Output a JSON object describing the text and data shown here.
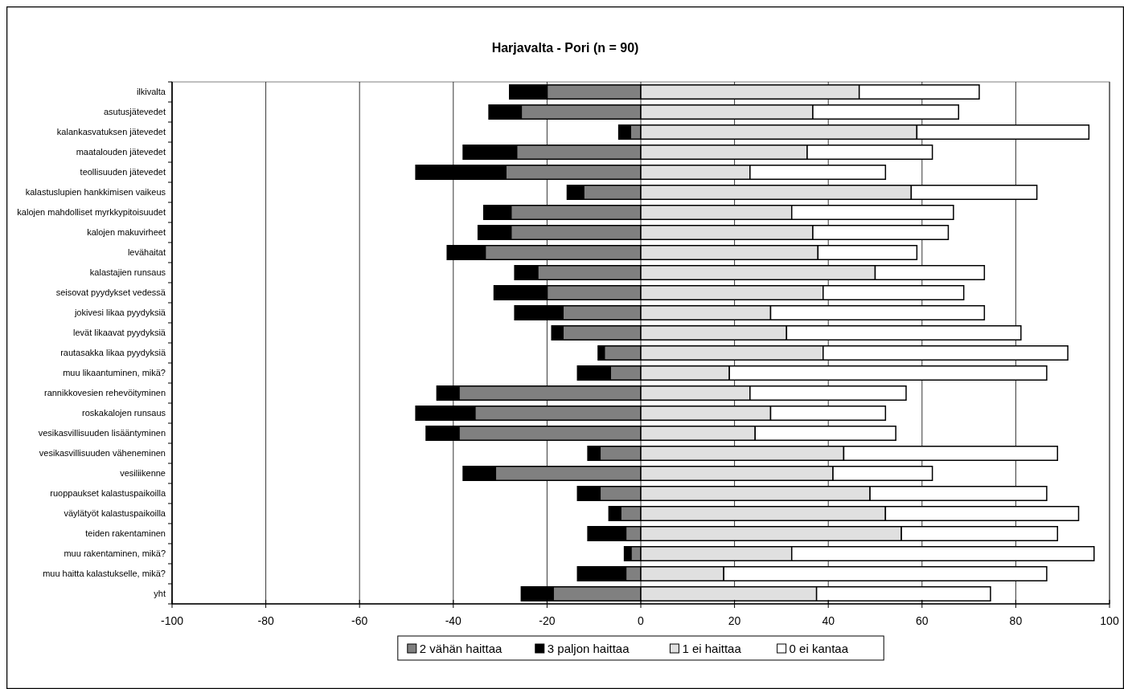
{
  "chart_data": {
    "type": "bar",
    "title": "Harjavalta - Pori (n = 90)",
    "orientation": "horizontal",
    "stacked": true,
    "categories": [
      "ilkivalta",
      "asutusjätevedet",
      "kalankasvatuksen jätevedet",
      "maatalouden jätevedet",
      "teollisuuden jätevedet",
      "kalastuslupien hankkimisen vaikeus",
      "kalojen mahdolliset myrkkypitoisuudet",
      "kalojen makuvirheet",
      "levähaitat",
      "kalastajien runsaus",
      "seisovat pyydykset vedessä",
      "jokivesi likaa pyydyksiä",
      "levät likaavat pyydyksiä",
      "rautasakka likaa pyydyksiä",
      "muu likaantuminen, mikä?",
      "rannikkovesien rehevöityminen",
      "roskakalojen runsaus",
      "vesikasvillisuuden lisääntyminen",
      "vesikasvillisuuden väheneminen",
      "vesiliikenne",
      "ruoppaukset kalastuspaikoilla",
      "väylätyöt kalastuspaikoilla",
      "teiden rakentaminen",
      "muu rakentaminen, mikä?",
      "muu haitta kalastukselle, mikä?",
      "yht"
    ],
    "series": [
      {
        "name": "2 vähän haittaa",
        "color": "#808080",
        "values": [
          -20,
          -25.5,
          -2.2,
          -26.5,
          -28.8,
          -12.2,
          -27.7,
          -27.7,
          -33.2,
          -22,
          -20,
          -16.6,
          -16.6,
          -7.8,
          -6.5,
          -38.8,
          -35.4,
          -38.8,
          -8.7,
          -31,
          -8.7,
          -4.3,
          -3.2,
          -2.1,
          -3.2,
          -18.7
        ]
      },
      {
        "name": "3 paljon haittaa",
        "color": "#000000",
        "values": [
          -8,
          -6.9,
          -2.5,
          -11.4,
          -19.2,
          -3.5,
          -5.8,
          -7,
          -8.1,
          -4.9,
          -11.3,
          -10.3,
          -2.4,
          -1.3,
          -7,
          -4.7,
          -12.6,
          -7,
          -2.6,
          -6.9,
          -4.8,
          -2.5,
          -8.1,
          -1.4,
          -10.3,
          -6.8
        ]
      },
      {
        "name": "1 ei haittaa",
        "color": "#e0e0e0",
        "values": [
          46.6,
          36.7,
          58.9,
          35.5,
          23.3,
          57.7,
          32.2,
          36.7,
          37.8,
          50,
          38.9,
          27.7,
          31.1,
          38.9,
          18.9,
          23.3,
          27.7,
          24.4,
          43.3,
          41,
          48.9,
          52.2,
          55.6,
          32.2,
          17.7,
          37.5
        ]
      },
      {
        "name": "0 ei kantaa",
        "color": "#ffffff",
        "values": [
          25.6,
          31.1,
          36.7,
          26.7,
          28.9,
          26.8,
          34.5,
          28.9,
          21.1,
          23.3,
          30,
          45.6,
          50,
          52.2,
          67.7,
          33.3,
          24.5,
          30,
          45.6,
          21.2,
          37.7,
          41.2,
          33.3,
          64.5,
          68.9,
          37.1
        ]
      }
    ],
    "xlim": [
      -100,
      100
    ],
    "xticks": [
      -100,
      -80,
      -60,
      -40,
      -20,
      0,
      20,
      40,
      60,
      80,
      100
    ],
    "grid": "x",
    "legend": "bottom"
  }
}
